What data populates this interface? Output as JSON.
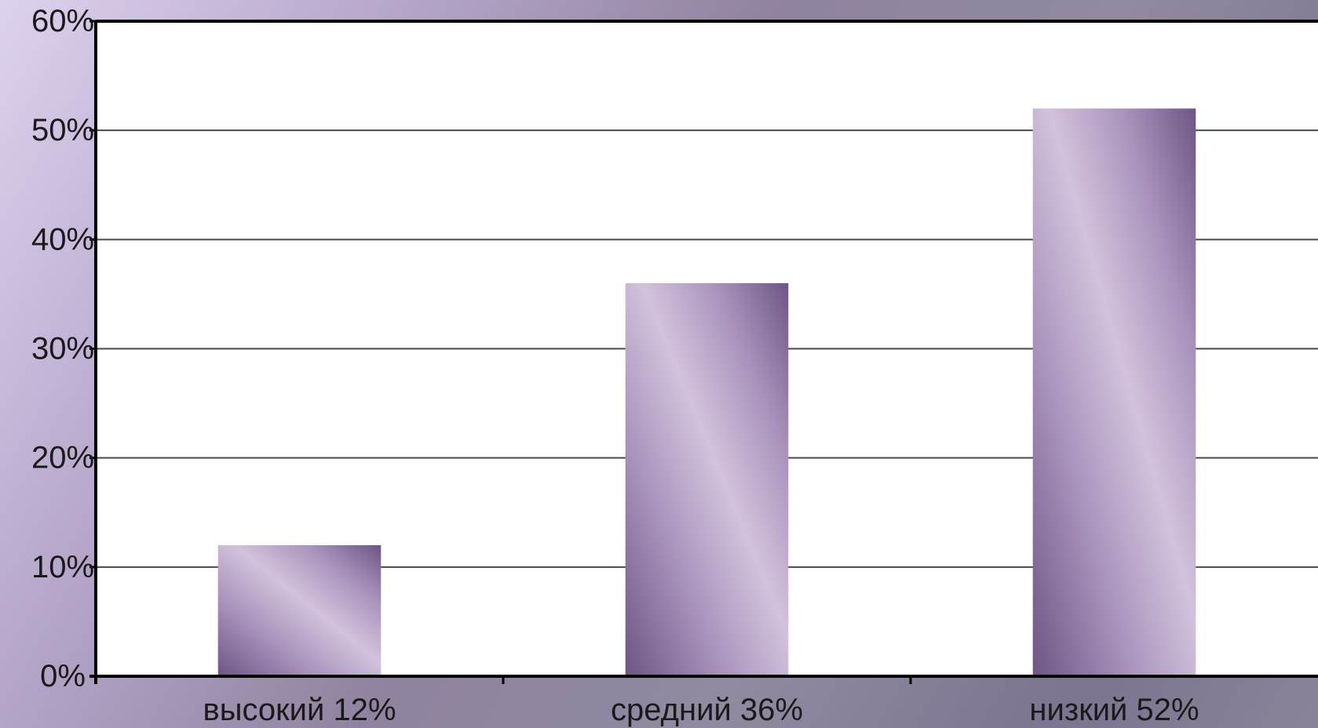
{
  "chart_data": {
    "type": "bar",
    "categories": [
      "высокий  12%",
      "средний 36%",
      "низкий 52%"
    ],
    "values": [
      12,
      36,
      52
    ],
    "ylim": [
      0,
      60
    ],
    "yticks": [
      0,
      10,
      20,
      30,
      40,
      50,
      60
    ],
    "ytick_labels": [
      "0%",
      "10%",
      "20%",
      "30%",
      "40%",
      "50%",
      "60%"
    ],
    "grid": true,
    "legend": "none",
    "title": "",
    "xlabel": "",
    "ylabel": ""
  },
  "colors": {
    "bar_dark": "#6e5584",
    "bar_light": "#d2c2dc",
    "grid": "#4a4a4a",
    "plot_bg": "#ffffff",
    "axis": "#000000"
  }
}
